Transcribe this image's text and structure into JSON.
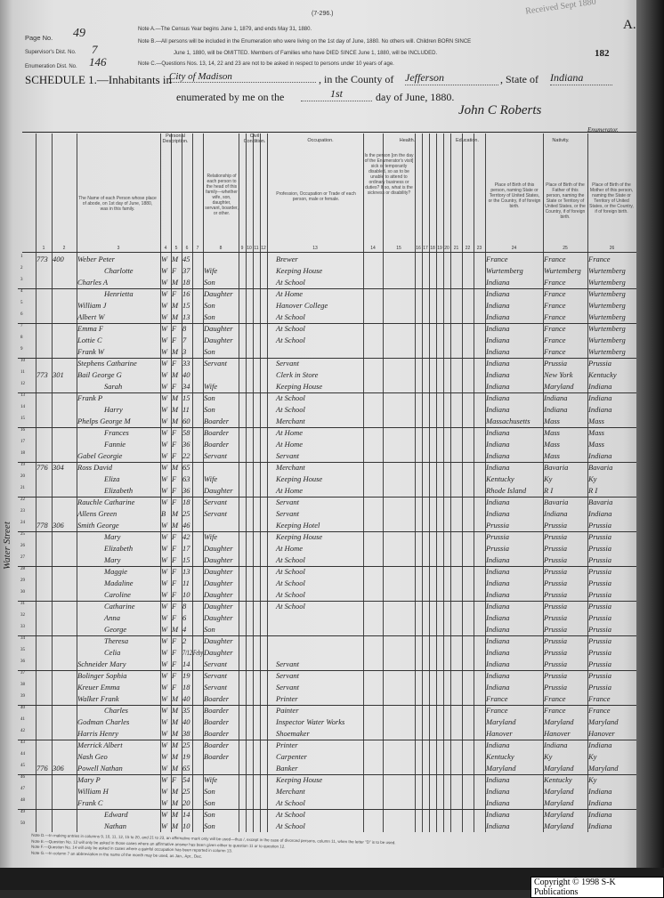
{
  "form_number": "(7-296.)",
  "stamp": "Received Sept 1880",
  "sheet_letter": "A.",
  "sheet_number": "182",
  "page_info": {
    "page_label": "Page No.",
    "page_value": "49",
    "supervisor_label": "Supervisor's Dist. No.",
    "supervisor_value": "7",
    "enumeration_label": "Enumeration Dist. No.",
    "enumeration_value": "146"
  },
  "notes_top": [
    "Note A.—The Census Year begins June 1, 1879, and ends May 31, 1880.",
    "Note B.—All persons will be included in the Enumeration who were living on the 1st day of June, 1880. No others will. Children BORN SINCE",
    "June 1, 1880, will be OMITTED. Members of Families who have DIED SINCE June 1, 1880, will be INCLUDED.",
    "Note C.—Questions Nos. 13, 14, 22 and 23 are not to be asked in respect to persons under 10 years of age."
  ],
  "schedule": {
    "title": "SCHEDULE 1.—Inhabitants in",
    "place": "City of Madison",
    "county_label": ", in the County of",
    "county": "Jefferson",
    "state_label": ", State of",
    "state": "Indiana",
    "enum_label": "enumerated by me on the",
    "day": "1st",
    "enum_suffix": "day of June, 1880.",
    "enumerator_signature": "John C Roberts",
    "enumerator_label": "Enumerator."
  },
  "column_groups": {
    "personal": "Personal Description.",
    "civil": "Civil Condition.",
    "occupation": "Occupation.",
    "health": "Health.",
    "education": "Education.",
    "nativity": "Nativity."
  },
  "column_headers": {
    "name": "The Name of each Person whose place of abode, on 1st day of June, 1880, was in this family.",
    "relationship": "Relationship of each person to the head of this family—whether wife, son, daughter, servant, boarder, or other.",
    "occupation": "Profession, Occupation or Trade of each person, male or female.",
    "health": "Is the person [on the day of the Enumerator's visit] sick or temporarily disabled, so as to be unable to attend to ordinary business or duties? If so, what is the sickness or disability?",
    "birth_person": "Place of Birth of this person, naming State or Territory of United States, or the Country, if of foreign birth.",
    "birth_father": "Place of Birth of the Father of this person, naming the State or Territory of United States, or the Country, if of foreign birth.",
    "birth_mother": "Place of Birth of the Mother of this person, naming the State or Territory of United States, or the Country, if of foreign birth."
  },
  "column_numbers": [
    "1",
    "2",
    "3",
    "4",
    "5",
    "6",
    "7",
    "8",
    "9",
    "10",
    "11",
    "12",
    "13",
    "14",
    "15",
    "16",
    "17",
    "18",
    "19",
    "20",
    "21",
    "22",
    "23",
    "24",
    "25",
    "26"
  ],
  "margin_note": "Water Street",
  "rows": [
    {
      "n": "1",
      "dw": "773",
      "fam": "400",
      "name": "Weber Peter",
      "c": "W",
      "s": "M",
      "a": "45",
      "m": "",
      "rel": "",
      "occ": "Brewer",
      "b": "France",
      "bf": "France",
      "bm": "France",
      "fam_end": false
    },
    {
      "n": "2",
      "dw": "",
      "fam": "",
      "name": "Charlotte",
      "c": "W",
      "s": "F",
      "a": "37",
      "m": "",
      "rel": "Wife",
      "occ": "Keeping House",
      "b": "Wurtemberg",
      "bf": "Wurtemberg",
      "bm": "Wurtemberg",
      "fam_end": false
    },
    {
      "n": "3",
      "dw": "",
      "fam": "",
      "name": "Charles A",
      "c": "W",
      "s": "M",
      "a": "18",
      "m": "",
      "rel": "Son",
      "occ": "At School",
      "b": "Indiana",
      "bf": "France",
      "bm": "Wurtemberg",
      "fam_end": true
    },
    {
      "n": "4",
      "dw": "",
      "fam": "",
      "name": "Henrietta",
      "c": "W",
      "s": "F",
      "a": "16",
      "m": "",
      "rel": "Daughter",
      "occ": "At Home",
      "b": "Indiana",
      "bf": "France",
      "bm": "Wurtemberg",
      "fam_end": false
    },
    {
      "n": "5",
      "dw": "",
      "fam": "",
      "name": "William J",
      "c": "W",
      "s": "M",
      "a": "15",
      "m": "",
      "rel": "Son",
      "occ": "Hanover College",
      "b": "Indiana",
      "bf": "France",
      "bm": "Wurtemberg",
      "fam_end": false
    },
    {
      "n": "6",
      "dw": "",
      "fam": "",
      "name": "Albert W",
      "c": "W",
      "s": "M",
      "a": "13",
      "m": "",
      "rel": "Son",
      "occ": "At School",
      "b": "Indiana",
      "bf": "France",
      "bm": "Wurtemberg",
      "fam_end": true
    },
    {
      "n": "7",
      "dw": "",
      "fam": "",
      "name": "Emma F",
      "c": "W",
      "s": "F",
      "a": "8",
      "m": "",
      "rel": "Daughter",
      "occ": "At School",
      "b": "Indiana",
      "bf": "France",
      "bm": "Wurtemberg",
      "fam_end": false
    },
    {
      "n": "8",
      "dw": "",
      "fam": "",
      "name": "Lottie C",
      "c": "W",
      "s": "F",
      "a": "7",
      "m": "",
      "rel": "Daughter",
      "occ": "At School",
      "b": "Indiana",
      "bf": "France",
      "bm": "Wurtemberg",
      "fam_end": false
    },
    {
      "n": "9",
      "dw": "",
      "fam": "",
      "name": "Frank W",
      "c": "W",
      "s": "M",
      "a": "3",
      "m": "",
      "rel": "Son",
      "occ": "",
      "b": "Indiana",
      "bf": "France",
      "bm": "Wurtemberg",
      "fam_end": true
    },
    {
      "n": "10",
      "dw": "",
      "fam": "",
      "name": "Stephens Catharine",
      "c": "W",
      "s": "F",
      "a": "33",
      "m": "",
      "rel": "Servant",
      "occ": "Servant",
      "b": "Indiana",
      "bf": "Prussia",
      "bm": "Prussia",
      "fam_end": false
    },
    {
      "n": "11",
      "dw": "773",
      "fam": "301",
      "name": "Bail George G",
      "c": "W",
      "s": "M",
      "a": "40",
      "m": "",
      "rel": "",
      "occ": "Clerk in Store",
      "b": "Indiana",
      "bf": "New York",
      "bm": "Kentucky",
      "fam_end": false
    },
    {
      "n": "12",
      "dw": "",
      "fam": "",
      "name": "Sarah",
      "c": "W",
      "s": "F",
      "a": "34",
      "m": "",
      "rel": "Wife",
      "occ": "Keeping House",
      "b": "Indiana",
      "bf": "Maryland",
      "bm": "Indiana",
      "fam_end": true
    },
    {
      "n": "13",
      "dw": "",
      "fam": "",
      "name": "Frank P",
      "c": "W",
      "s": "M",
      "a": "15",
      "m": "",
      "rel": "Son",
      "occ": "At School",
      "b": "Indiana",
      "bf": "Indiana",
      "bm": "Indiana",
      "fam_end": false
    },
    {
      "n": "14",
      "dw": "",
      "fam": "",
      "name": "Harry",
      "c": "W",
      "s": "M",
      "a": "11",
      "m": "",
      "rel": "Son",
      "occ": "At School",
      "b": "Indiana",
      "bf": "Indiana",
      "bm": "Indiana",
      "fam_end": false
    },
    {
      "n": "15",
      "dw": "",
      "fam": "",
      "name": "Phelps George M",
      "c": "W",
      "s": "M",
      "a": "60",
      "m": "",
      "rel": "Boarder",
      "occ": "Merchant",
      "b": "Massachusetts",
      "bf": "Mass",
      "bm": "Mass",
      "fam_end": true
    },
    {
      "n": "16",
      "dw": "",
      "fam": "",
      "name": "Frances",
      "c": "W",
      "s": "F",
      "a": "58",
      "m": "",
      "rel": "Boarder",
      "occ": "At Home",
      "b": "Indiana",
      "bf": "Mass",
      "bm": "Mass",
      "fam_end": false
    },
    {
      "n": "17",
      "dw": "",
      "fam": "",
      "name": "Fannie",
      "c": "W",
      "s": "F",
      "a": "36",
      "m": "",
      "rel": "Boarder",
      "occ": "At Home",
      "b": "Indiana",
      "bf": "Mass",
      "bm": "Mass",
      "fam_end": false
    },
    {
      "n": "18",
      "dw": "",
      "fam": "",
      "name": "Gabel Georgie",
      "c": "W",
      "s": "F",
      "a": "22",
      "m": "",
      "rel": "Servant",
      "occ": "Servant",
      "b": "Indiana",
      "bf": "Mass",
      "bm": "Indiana",
      "fam_end": true
    },
    {
      "n": "19",
      "dw": "776",
      "fam": "304",
      "name": "Ross David",
      "c": "W",
      "s": "M",
      "a": "65",
      "m": "",
      "rel": "",
      "occ": "Merchant",
      "b": "Indiana",
      "bf": "Bavaria",
      "bm": "Bavaria",
      "fam_end": false
    },
    {
      "n": "20",
      "dw": "",
      "fam": "",
      "name": "Eliza",
      "c": "W",
      "s": "F",
      "a": "63",
      "m": "",
      "rel": "Wife",
      "occ": "Keeping House",
      "b": "Kentucky",
      "bf": "Ky",
      "bm": "Ky",
      "fam_end": false
    },
    {
      "n": "21",
      "dw": "",
      "fam": "",
      "name": "Elizabeth",
      "c": "W",
      "s": "F",
      "a": "36",
      "m": "",
      "rel": "Daughter",
      "occ": "At Home",
      "b": "Rhode Island",
      "bf": "R I",
      "bm": "R I",
      "fam_end": true
    },
    {
      "n": "22",
      "dw": "",
      "fam": "",
      "name": "Rauchle Catharine",
      "c": "W",
      "s": "F",
      "a": "18",
      "m": "",
      "rel": "Servant",
      "occ": "Servant",
      "b": "Indiana",
      "bf": "Bavaria",
      "bm": "Bavaria",
      "fam_end": false
    },
    {
      "n": "23",
      "dw": "",
      "fam": "",
      "name": "Allens Green",
      "c": "B",
      "s": "M",
      "a": "25",
      "m": "",
      "rel": "Servant",
      "occ": "Servant",
      "b": "Indiana",
      "bf": "Indiana",
      "bm": "Indiana",
      "fam_end": false
    },
    {
      "n": "24",
      "dw": "778",
      "fam": "306",
      "name": "Smith George",
      "c": "W",
      "s": "M",
      "a": "46",
      "m": "",
      "rel": "",
      "occ": "Keeping Hotel",
      "b": "Prussia",
      "bf": "Prussia",
      "bm": "Prussia",
      "fam_end": true
    },
    {
      "n": "25",
      "dw": "",
      "fam": "",
      "name": "Mary",
      "c": "W",
      "s": "F",
      "a": "42",
      "m": "",
      "rel": "Wife",
      "occ": "Keeping House",
      "b": "Prussia",
      "bf": "Prussia",
      "bm": "Prussia",
      "fam_end": false
    },
    {
      "n": "26",
      "dw": "",
      "fam": "",
      "name": "Elizabeth",
      "c": "W",
      "s": "F",
      "a": "17",
      "m": "",
      "rel": "Daughter",
      "occ": "At Home",
      "b": "Prussia",
      "bf": "Prussia",
      "bm": "Prussia",
      "fam_end": false
    },
    {
      "n": "27",
      "dw": "",
      "fam": "",
      "name": "Mary",
      "c": "W",
      "s": "F",
      "a": "15",
      "m": "",
      "rel": "Daughter",
      "occ": "At School",
      "b": "Indiana",
      "bf": "Prussia",
      "bm": "Prussia",
      "fam_end": true
    },
    {
      "n": "28",
      "dw": "",
      "fam": "",
      "name": "Maggie",
      "c": "W",
      "s": "F",
      "a": "13",
      "m": "",
      "rel": "Daughter",
      "occ": "At School",
      "b": "Indiana",
      "bf": "Prussia",
      "bm": "Prussia",
      "fam_end": false
    },
    {
      "n": "29",
      "dw": "",
      "fam": "",
      "name": "Madaline",
      "c": "W",
      "s": "F",
      "a": "11",
      "m": "",
      "rel": "Daughter",
      "occ": "At School",
      "b": "Indiana",
      "bf": "Prussia",
      "bm": "Prussia",
      "fam_end": false
    },
    {
      "n": "30",
      "dw": "",
      "fam": "",
      "name": "Caroline",
      "c": "W",
      "s": "F",
      "a": "10",
      "m": "",
      "rel": "Daughter",
      "occ": "At School",
      "b": "Indiana",
      "bf": "Prussia",
      "bm": "Prussia",
      "fam_end": true
    },
    {
      "n": "31",
      "dw": "",
      "fam": "",
      "name": "Catharine",
      "c": "W",
      "s": "F",
      "a": "8",
      "m": "",
      "rel": "Daughter",
      "occ": "At School",
      "b": "Indiana",
      "bf": "Prussia",
      "bm": "Prussia",
      "fam_end": false
    },
    {
      "n": "32",
      "dw": "",
      "fam": "",
      "name": "Anna",
      "c": "W",
      "s": "F",
      "a": "6",
      "m": "",
      "rel": "Daughter",
      "occ": "",
      "b": "Indiana",
      "bf": "Prussia",
      "bm": "Prussia",
      "fam_end": false
    },
    {
      "n": "33",
      "dw": "",
      "fam": "",
      "name": "George",
      "c": "W",
      "s": "M",
      "a": "4",
      "m": "",
      "rel": "Son",
      "occ": "",
      "b": "Indiana",
      "bf": "Prussia",
      "bm": "Prussia",
      "fam_end": true
    },
    {
      "n": "34",
      "dw": "",
      "fam": "",
      "name": "Theresa",
      "c": "W",
      "s": "F",
      "a": "2",
      "m": "",
      "rel": "Daughter",
      "occ": "",
      "b": "Indiana",
      "bf": "Prussia",
      "bm": "Prussia",
      "fam_end": false
    },
    {
      "n": "35",
      "dw": "",
      "fam": "",
      "name": "Celia",
      "c": "W",
      "s": "F",
      "a": "7/12",
      "m": "Feby",
      "rel": "Daughter",
      "occ": "",
      "b": "Indiana",
      "bf": "Prussia",
      "bm": "Prussia",
      "fam_end": false
    },
    {
      "n": "36",
      "dw": "",
      "fam": "",
      "name": "Schneider Mary",
      "c": "W",
      "s": "F",
      "a": "14",
      "m": "",
      "rel": "Servant",
      "occ": "Servant",
      "b": "Indiana",
      "bf": "Prussia",
      "bm": "Prussia",
      "fam_end": true
    },
    {
      "n": "37",
      "dw": "",
      "fam": "",
      "name": "Bolinger Sophia",
      "c": "W",
      "s": "F",
      "a": "19",
      "m": "",
      "rel": "Servant",
      "occ": "Servant",
      "b": "Indiana",
      "bf": "Prussia",
      "bm": "Prussia",
      "fam_end": false
    },
    {
      "n": "38",
      "dw": "",
      "fam": "",
      "name": "Kreuer Emma",
      "c": "W",
      "s": "F",
      "a": "18",
      "m": "",
      "rel": "Servant",
      "occ": "Servant",
      "b": "Indiana",
      "bf": "Prussia",
      "bm": "Prussia",
      "fam_end": false
    },
    {
      "n": "39",
      "dw": "",
      "fam": "",
      "name": "Walker Frank",
      "c": "W",
      "s": "M",
      "a": "40",
      "m": "",
      "rel": "Boarder",
      "occ": "Printer",
      "b": "France",
      "bf": "France",
      "bm": "France",
      "fam_end": true
    },
    {
      "n": "40",
      "dw": "",
      "fam": "",
      "name": "Charles",
      "c": "W",
      "s": "M",
      "a": "35",
      "m": "",
      "rel": "Boarder",
      "occ": "Painter",
      "b": "France",
      "bf": "France",
      "bm": "France",
      "fam_end": false
    },
    {
      "n": "41",
      "dw": "",
      "fam": "",
      "name": "Godman Charles",
      "c": "W",
      "s": "M",
      "a": "40",
      "m": "",
      "rel": "Boarder",
      "occ": "Inspector Water Works",
      "b": "Maryland",
      "bf": "Maryland",
      "bm": "Maryland",
      "fam_end": false
    },
    {
      "n": "42",
      "dw": "",
      "fam": "",
      "name": "Harris Henry",
      "c": "W",
      "s": "M",
      "a": "38",
      "m": "",
      "rel": "Boarder",
      "occ": "Shoemaker",
      "b": "Hanover",
      "bf": "Hanover",
      "bm": "Hanover",
      "fam_end": true
    },
    {
      "n": "43",
      "dw": "",
      "fam": "",
      "name": "Merrick Albert",
      "c": "W",
      "s": "M",
      "a": "25",
      "m": "",
      "rel": "Boarder",
      "occ": "Printer",
      "b": "Indiana",
      "bf": "Indiana",
      "bm": "Indiana",
      "fam_end": false
    },
    {
      "n": "44",
      "dw": "",
      "fam": "",
      "name": "Nash Geo",
      "c": "W",
      "s": "M",
      "a": "19",
      "m": "",
      "rel": "Boarder",
      "occ": "Carpenter",
      "b": "Kentucky",
      "bf": "Ky",
      "bm": "Ky",
      "fam_end": false
    },
    {
      "n": "45",
      "dw": "776",
      "fam": "306",
      "name": "Powell Nathan",
      "c": "W",
      "s": "M",
      "a": "65",
      "m": "",
      "rel": "",
      "occ": "Banker",
      "b": "Maryland",
      "bf": "Maryland",
      "bm": "Maryland",
      "fam_end": true
    },
    {
      "n": "46",
      "dw": "",
      "fam": "",
      "name": "Mary P",
      "c": "W",
      "s": "F",
      "a": "54",
      "m": "",
      "rel": "Wife",
      "occ": "Keeping House",
      "b": "Indiana",
      "bf": "Kentucky",
      "bm": "Ky",
      "fam_end": false
    },
    {
      "n": "47",
      "dw": "",
      "fam": "",
      "name": "William H",
      "c": "W",
      "s": "M",
      "a": "25",
      "m": "",
      "rel": "Son",
      "occ": "Merchant",
      "b": "Indiana",
      "bf": "Maryland",
      "bm": "Indiana",
      "fam_end": false
    },
    {
      "n": "48",
      "dw": "",
      "fam": "",
      "name": "Frank C",
      "c": "W",
      "s": "M",
      "a": "20",
      "m": "",
      "rel": "Son",
      "occ": "At School",
      "b": "Indiana",
      "bf": "Maryland",
      "bm": "Indiana",
      "fam_end": true
    },
    {
      "n": "49",
      "dw": "",
      "fam": "",
      "name": "Edward",
      "c": "W",
      "s": "M",
      "a": "14",
      "m": "",
      "rel": "Son",
      "occ": "At School",
      "b": "Indiana",
      "bf": "Maryland",
      "bm": "Indiana",
      "fam_end": false
    },
    {
      "n": "50",
      "dw": "",
      "fam": "",
      "name": "Nathan",
      "c": "W",
      "s": "M",
      "a": "10",
      "m": "",
      "rel": "Son",
      "occ": "At School",
      "b": "Indiana",
      "bf": "Maryland",
      "bm": "Indiana",
      "fam_end": false
    }
  ],
  "notes_bottom": [
    "Note D.—In making entries in columns 9, 10, 11, 12, 15 to 20, and 21 to 23, an affirmative mark only will be used—thus /, except in the case of divorced persons, column 11, when the letter \"D\" is to be used.",
    "Note E.—Question No. 12 will only be asked in those cases where an affirmative answer has been given either to question 11 or to question 12.",
    "Note F.—Question No. 14 will only be asked in cases where a gainful occupation has been reported in column 13.",
    "Note G.—In column 7 an abbreviation in the name of the month may be used, as Jan., Apr., Dec."
  ],
  "copyright": "Copyright © 1998 S-K Publications"
}
